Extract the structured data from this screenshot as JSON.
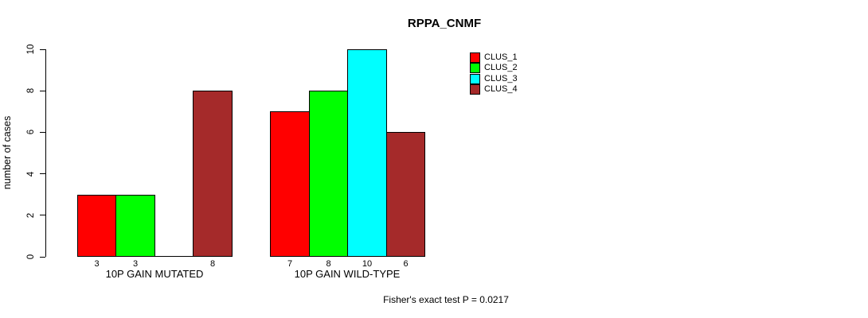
{
  "page": {
    "background": "#ffffff",
    "text_color": "#000000"
  },
  "chart_data": {
    "type": "bar",
    "title": "RPPA_CNMF",
    "xlabel": "",
    "ylabel": "number of cases",
    "ylim": [
      0,
      10
    ],
    "yticks": [
      0,
      2,
      4,
      6,
      8,
      10
    ],
    "grid": false,
    "legend_position": "top-right",
    "categories": [
      "10P GAIN MUTATED",
      "10P GAIN WILD-TYPE"
    ],
    "series": [
      {
        "name": "CLUS_1",
        "color": "#FF0000",
        "values": [
          3,
          7
        ]
      },
      {
        "name": "CLUS_2",
        "color": "#00FF00",
        "values": [
          3,
          8
        ]
      },
      {
        "name": "CLUS_3",
        "color": "#00FFFF",
        "values": [
          0,
          10
        ]
      },
      {
        "name": "CLUS_4",
        "color": "#A52A2A",
        "values": [
          8,
          6
        ]
      }
    ],
    "bar_value_labels": [
      [
        "3",
        "3",
        "",
        "8"
      ],
      [
        "7",
        "8",
        "10",
        "6"
      ]
    ],
    "footer": "Fisher's exact test P = 0.0217"
  }
}
